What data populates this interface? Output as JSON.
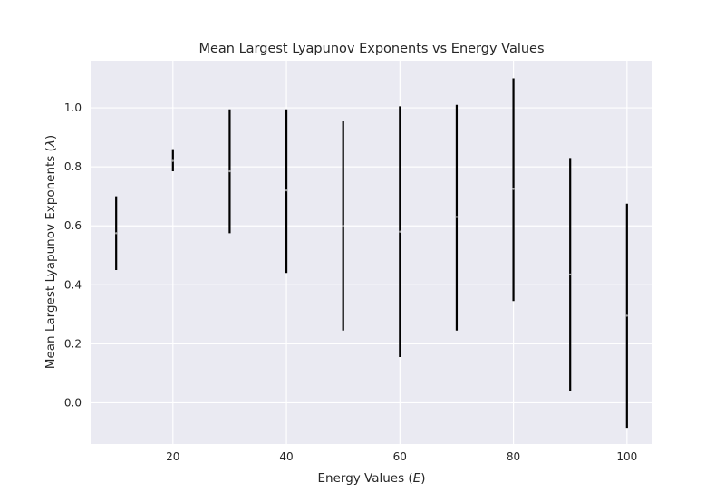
{
  "chart_data": {
    "type": "errorbar",
    "title": "Mean Largest Lyapunov Exponents vs Energy Values",
    "xlabel": "Energy Values (E)",
    "xlabel_parts": {
      "prefix": "Energy Values (",
      "symbol": "E",
      "suffix": ")"
    },
    "ylabel": "Mean Largest Lyapunov Exponents (λ)",
    "ylabel_parts": {
      "prefix": "Mean Largest Lyapunov Exponents (",
      "symbol": "λ",
      "suffix": ")"
    },
    "xlim": [
      5.5,
      104.5
    ],
    "ylim": [
      -0.14,
      1.16
    ],
    "x_ticks": [
      20,
      40,
      60,
      80,
      100
    ],
    "x_tick_labels": [
      "20",
      "40",
      "60",
      "80",
      "100"
    ],
    "y_ticks": [
      0.0,
      0.2,
      0.4,
      0.6,
      0.8,
      1.0
    ],
    "y_tick_labels": [
      "0.0",
      "0.2",
      "0.4",
      "0.6",
      "0.8",
      "1.0"
    ],
    "grid": true,
    "x": [
      10,
      20,
      30,
      40,
      50,
      60,
      70,
      80,
      90,
      100
    ],
    "mean": [
      0.575,
      0.82,
      0.785,
      0.72,
      0.6,
      0.58,
      0.63,
      0.725,
      0.435,
      0.295
    ],
    "lower": [
      0.45,
      0.785,
      0.575,
      0.44,
      0.245,
      0.155,
      0.245,
      0.345,
      0.04,
      -0.085
    ],
    "upper": [
      0.7,
      0.86,
      0.995,
      0.995,
      0.955,
      1.005,
      1.01,
      1.1,
      0.83,
      0.675
    ],
    "colors": {
      "background": "#eaeaf2",
      "grid": "#ffffff",
      "errorbar": "#000000",
      "marker": "#9e9e9e",
      "text": "#262626"
    }
  }
}
